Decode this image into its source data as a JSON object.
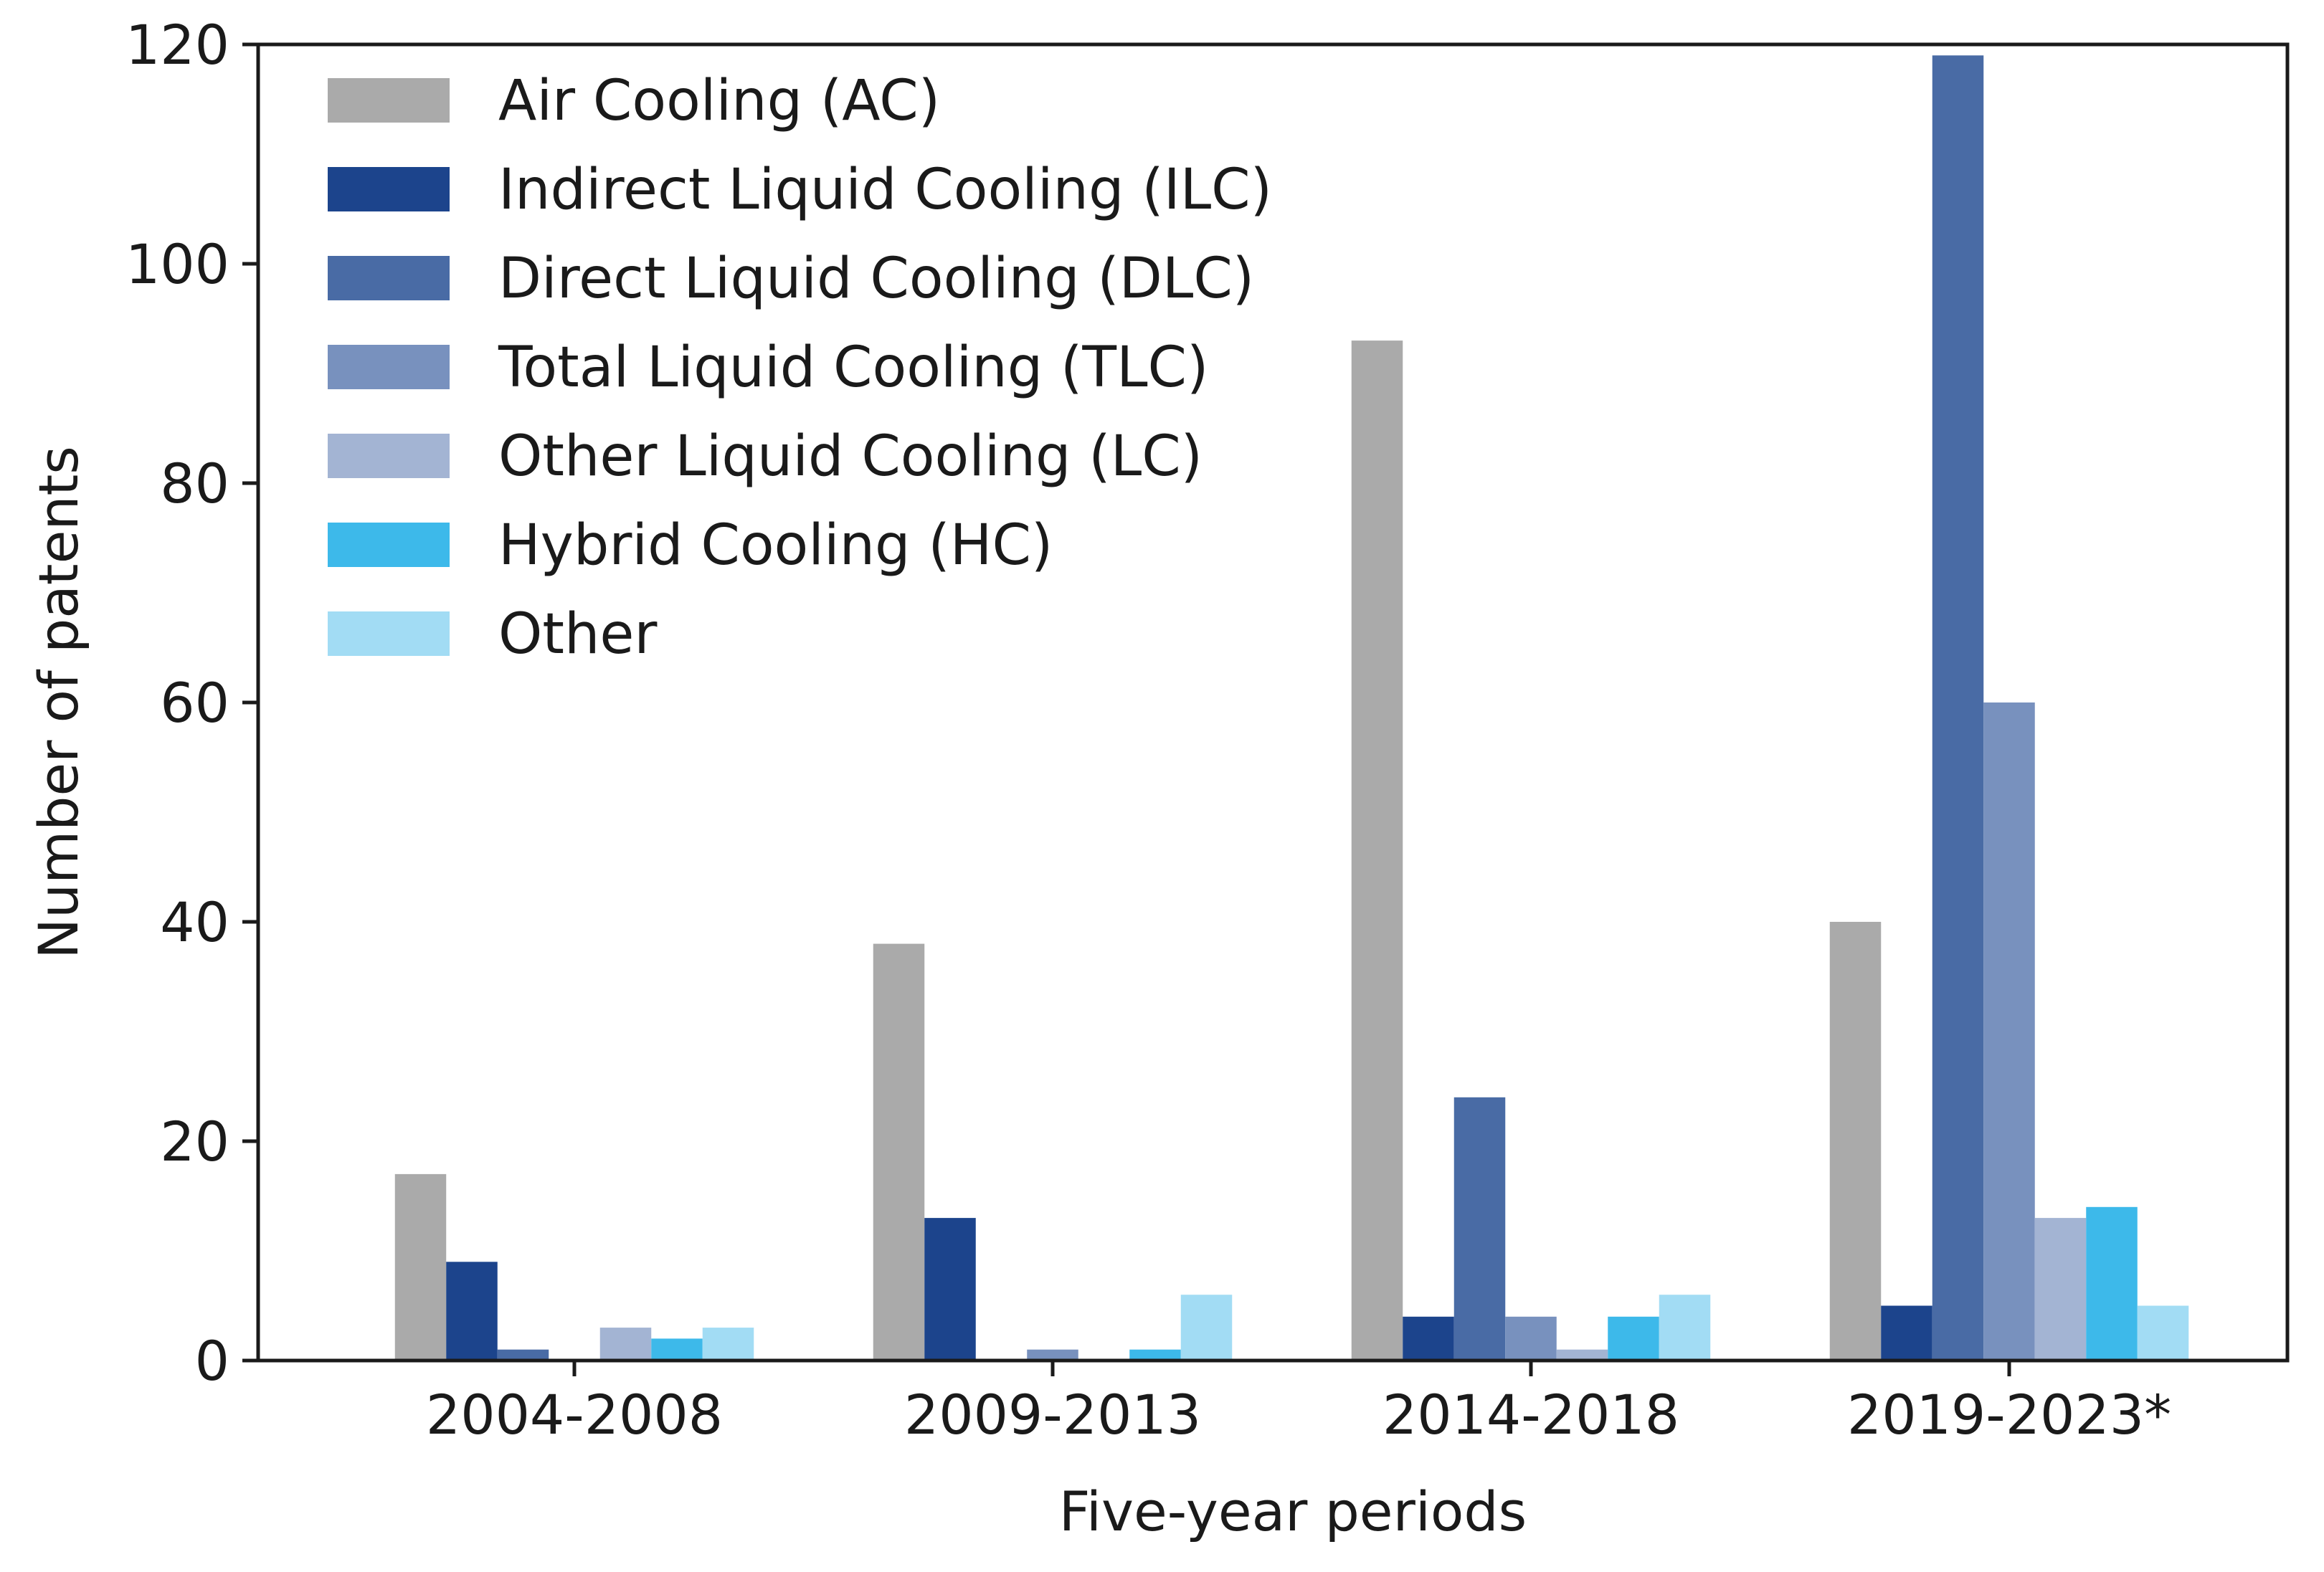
{
  "chart_data": {
    "type": "bar",
    "title": "",
    "xlabel": "Five-year periods",
    "ylabel": "Number of patents",
    "ylim": [
      0,
      120
    ],
    "yticks": [
      0,
      20,
      40,
      60,
      80,
      100,
      120
    ],
    "grid": false,
    "legend_position": "top-left",
    "categories": [
      "2004-2008",
      "2009-2013",
      "2014-2018",
      "2019-2023*"
    ],
    "series": [
      {
        "name": "Air Cooling (AC)",
        "color": "#aaaaaa",
        "values": [
          17,
          38,
          93,
          40
        ]
      },
      {
        "name": "Indirect Liquid Cooling (ILC)",
        "color": "#1c448c",
        "values": [
          9,
          13,
          4,
          5
        ]
      },
      {
        "name": "Direct Liquid Cooling (DLC)",
        "color": "#496ba5",
        "values": [
          1,
          0,
          24,
          119
        ]
      },
      {
        "name": "Total Liquid Cooling (TLC)",
        "color": "#7891be",
        "values": [
          0,
          1,
          4,
          60
        ]
      },
      {
        "name": "Other Liquid Cooling (LC)",
        "color": "#a3b4d3",
        "values": [
          3,
          0,
          1,
          13
        ]
      },
      {
        "name": "Hybrid Cooling (HC)",
        "color": "#3db9ea",
        "values": [
          2,
          1,
          4,
          14
        ]
      },
      {
        "name": "Other",
        "color": "#a2dcf4",
        "values": [
          3,
          6,
          6,
          5
        ]
      }
    ]
  }
}
